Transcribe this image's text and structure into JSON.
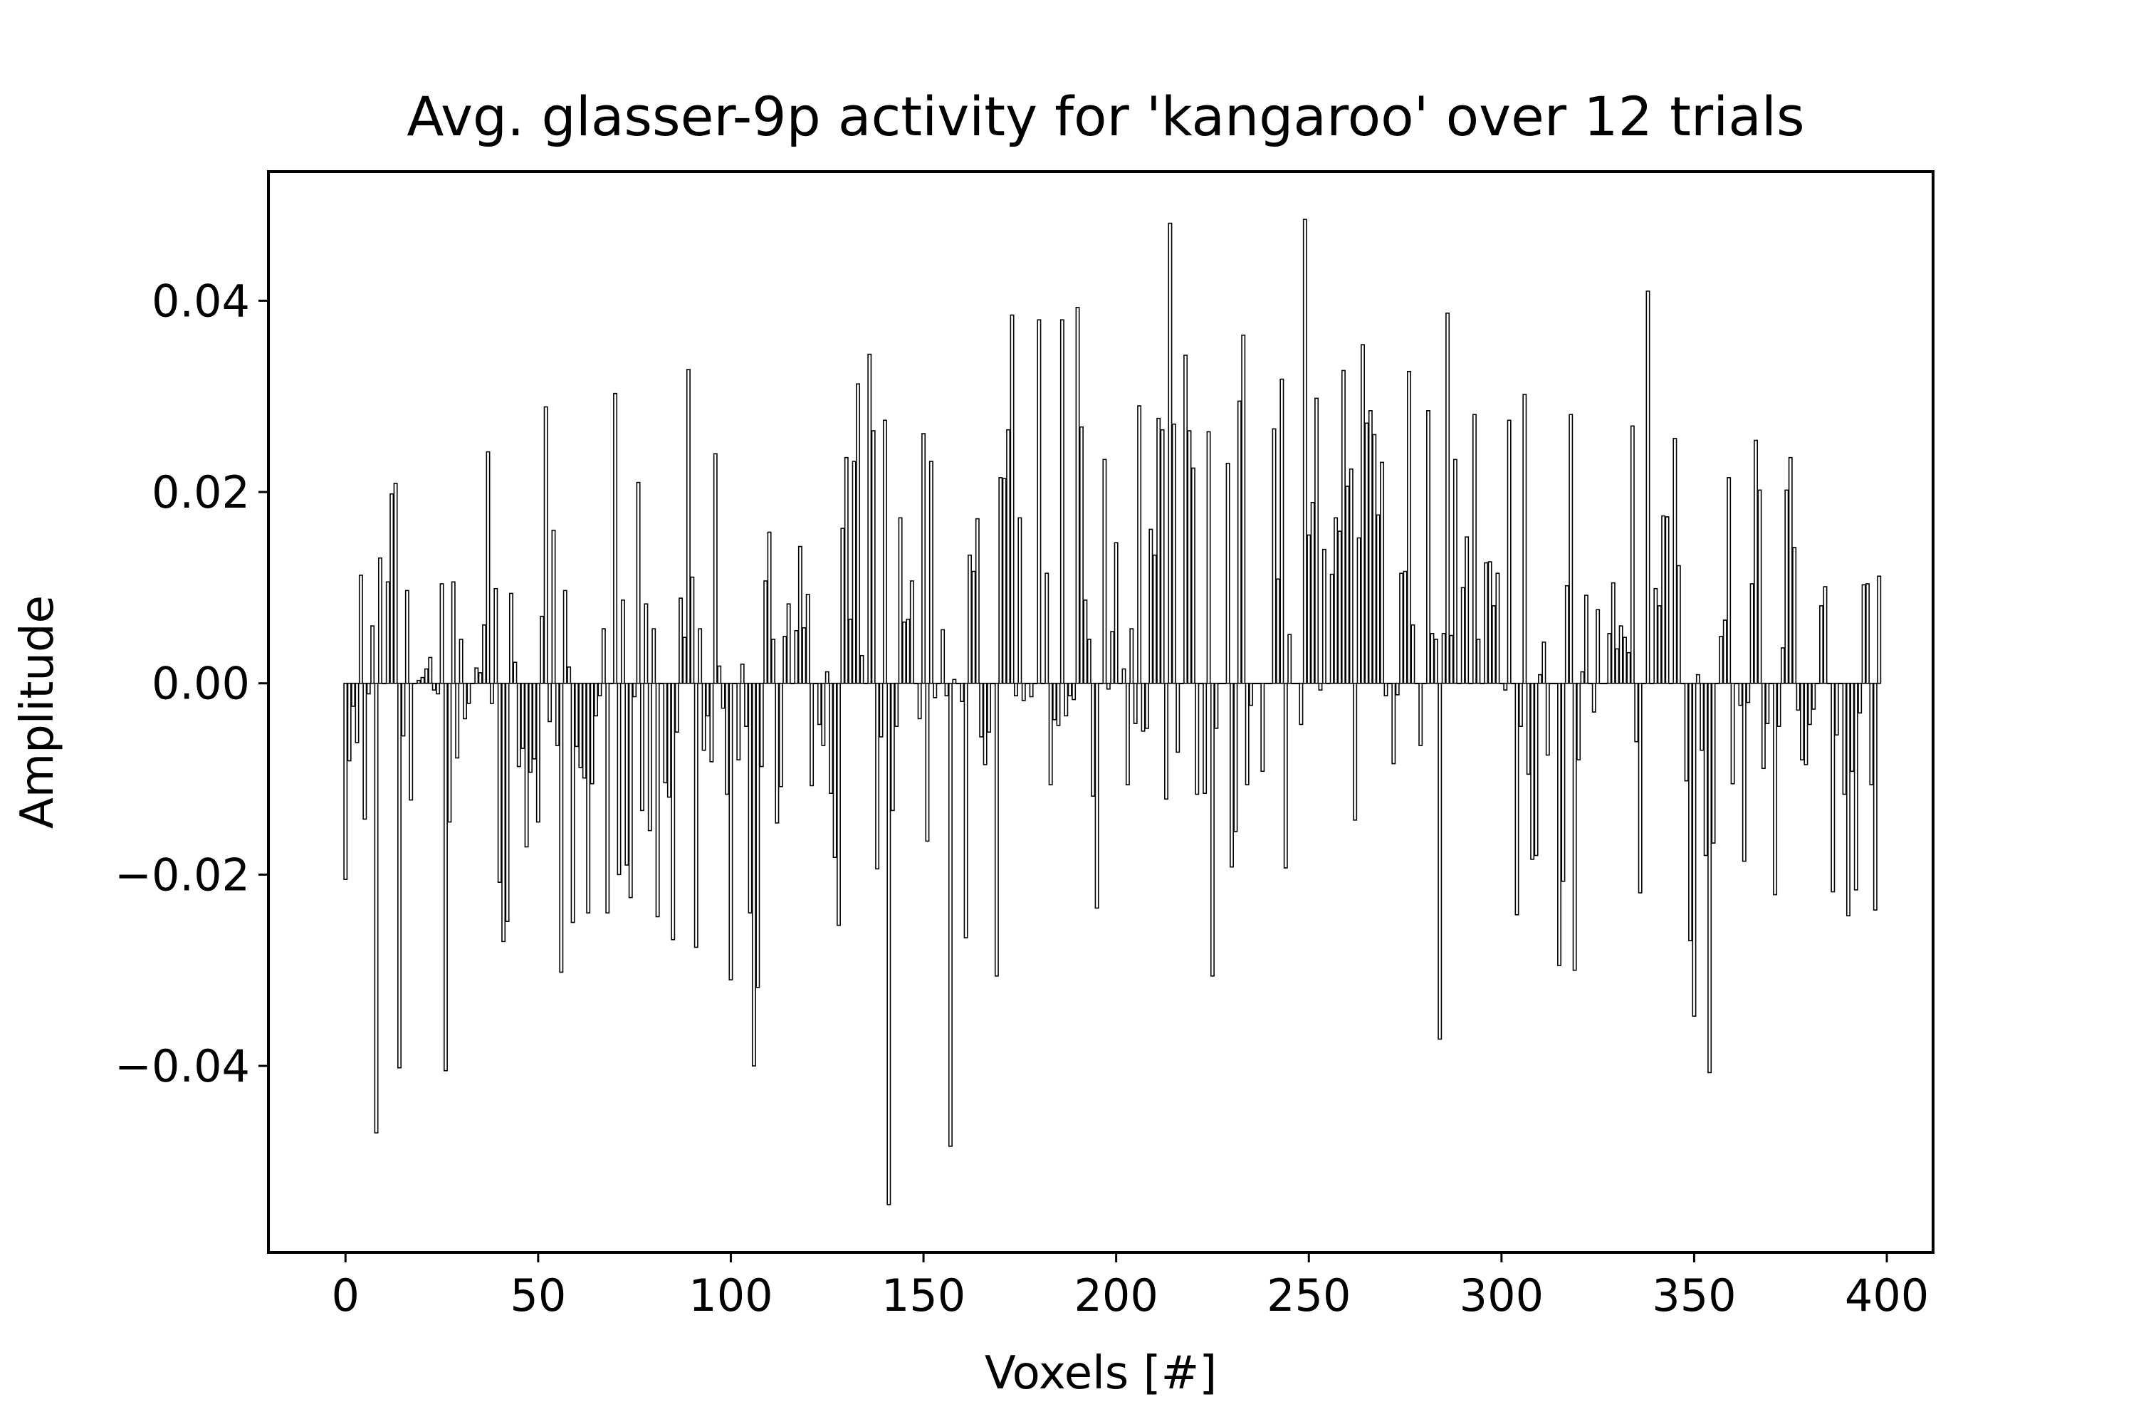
{
  "chart_data": {
    "type": "bar",
    "title": "Avg. glasser-9p activity for 'kangaroo' over 12 trials",
    "xlabel": "Voxels [#]",
    "ylabel": "Amplitude",
    "xlim": [
      -20,
      412
    ],
    "ylim": [
      -0.0595,
      0.0535
    ],
    "xticks": [
      0,
      50,
      100,
      150,
      200,
      250,
      300,
      350,
      400
    ],
    "xtick_labels": [
      "0",
      "50",
      "100",
      "150",
      "200",
      "250",
      "300",
      "350",
      "400"
    ],
    "yticks": [
      -0.04,
      -0.02,
      0.0,
      0.02,
      0.04
    ],
    "ytick_labels": [
      "−0.04",
      "−0.02",
      "0.00",
      "0.02",
      "0.04"
    ],
    "grid": false,
    "bar_color": "#000000",
    "x_start": 0,
    "values": [
      -0.0205,
      -0.0081,
      -0.0024,
      -0.0062,
      0.0113,
      -0.0142,
      -0.0011,
      0.006,
      -0.047,
      0.0131,
      0.0,
      0.0106,
      0.0198,
      0.0209,
      -0.0402,
      -0.0055,
      0.0097,
      -0.0122,
      0.0,
      0.0003,
      0.0006,
      0.0015,
      0.0027,
      -0.0007,
      -0.0011,
      0.0104,
      -0.0405,
      -0.0145,
      0.0106,
      -0.0078,
      0.0046,
      -0.0037,
      -0.0021,
      0.0,
      0.0016,
      0.0011,
      0.0061,
      0.0242,
      -0.0021,
      0.0099,
      -0.0208,
      -0.027,
      -0.0249,
      0.0094,
      0.0022,
      -0.0087,
      -0.0068,
      -0.0171,
      -0.0093,
      -0.0079,
      -0.0145,
      0.007,
      0.0289,
      -0.004,
      0.016,
      -0.0065,
      -0.0302,
      0.0097,
      0.0017,
      -0.025,
      -0.0066,
      -0.0088,
      -0.0099,
      -0.024,
      -0.0105,
      -0.0034,
      -0.0013,
      0.0057,
      -0.024,
      0.0,
      0.0303,
      -0.02,
      0.0087,
      -0.019,
      -0.0224,
      -0.0014,
      0.021,
      -0.0133,
      0.0083,
      -0.0154,
      0.0057,
      -0.0244,
      0.0,
      -0.0104,
      -0.0119,
      -0.0268,
      -0.0051,
      0.0089,
      0.0048,
      0.0328,
      0.0111,
      -0.0276,
      0.0057,
      -0.007,
      -0.0034,
      -0.0082,
      0.024,
      0.0018,
      -0.0026,
      -0.0116,
      -0.031,
      0.0,
      -0.008,
      0.002,
      -0.0045,
      -0.024,
      -0.04,
      -0.0318,
      -0.0087,
      0.0107,
      0.0158,
      0.0046,
      -0.0146,
      -0.0108,
      0.0049,
      0.0083,
      0.0,
      0.0055,
      0.0143,
      0.0058,
      0.0093,
      -0.0107,
      0.0,
      -0.0043,
      -0.0065,
      0.0012,
      -0.0115,
      -0.0182,
      -0.0253,
      0.0162,
      0.0236,
      0.0067,
      0.0232,
      0.0313,
      0.0029,
      0.0,
      0.0344,
      0.0264,
      -0.0194,
      -0.0056,
      0.0275,
      -0.0545,
      -0.0133,
      -0.0045,
      0.0173,
      0.0064,
      0.0067,
      0.0107,
      0.0,
      -0.0037,
      0.0261,
      -0.0165,
      0.0232,
      -0.0015,
      0.0,
      0.0056,
      -0.0013,
      -0.0484,
      0.0004,
      0.0,
      -0.0019,
      -0.0266,
      0.0134,
      0.0117,
      0.0172,
      -0.0056,
      -0.0085,
      -0.0051,
      0.0,
      -0.0306,
      0.0215,
      0.0214,
      0.0265,
      0.0385,
      -0.0013,
      0.0173,
      -0.0018,
      0.0,
      -0.0014,
      0.0,
      0.038,
      0.0,
      0.0115,
      -0.0106,
      -0.0038,
      -0.0044,
      0.038,
      -0.0034,
      -0.0013,
      -0.0017,
      0.0393,
      0.0268,
      0.0087,
      0.0046,
      -0.0118,
      -0.0235,
      0.0,
      0.0234,
      -0.0006,
      0.0054,
      0.0147,
      0.0,
      0.0015,
      -0.0106,
      0.0057,
      -0.0042,
      0.029,
      -0.005,
      -0.0047,
      0.0161,
      0.0134,
      0.0277,
      0.0265,
      -0.0121,
      0.0481,
      0.0271,
      -0.0072,
      0.0,
      0.0343,
      0.0264,
      0.0225,
      -0.0116,
      0.0,
      -0.0115,
      0.0263,
      -0.0306,
      -0.0047,
      0.0,
      0.0,
      0.023,
      -0.0192,
      -0.0155,
      0.0295,
      0.0364,
      -0.0106,
      -0.0023,
      0.0,
      0.0,
      -0.0092,
      0.0,
      0.0,
      0.0266,
      0.0109,
      0.0318,
      -0.0193,
      0.0051,
      0.0,
      0.0,
      -0.0043,
      0.0485,
      0.0155,
      0.0189,
      0.0298,
      -0.0007,
      0.014,
      0.0,
      0.0114,
      0.0173,
      0.0159,
      0.0327,
      0.0206,
      0.0224,
      -0.0143,
      0.0152,
      0.0354,
      0.0272,
      0.0285,
      0.026,
      0.0176,
      0.0231,
      -0.0013,
      0.0,
      -0.0084,
      -0.0012,
      0.0115,
      0.0117,
      0.0326,
      0.0061,
      0.0,
      -0.0065,
      0.0,
      0.0285,
      0.0052,
      0.0046,
      -0.0372,
      0.0052,
      0.0387,
      0.005,
      0.0234,
      0.0,
      0.01,
      0.0153,
      0.0,
      0.0281,
      0.0046,
      0.0,
      0.0126,
      0.0127,
      0.0081,
      0.0115,
      0.0,
      -0.0007,
      0.0275,
      0.0,
      -0.0242,
      -0.0045,
      0.0302,
      -0.0095,
      -0.0184,
      -0.018,
      0.0009,
      0.0043,
      -0.0075,
      0.0,
      0.0,
      -0.0295,
      -0.0207,
      0.0102,
      0.0281,
      -0.03,
      -0.008,
      0.0012,
      0.0092,
      0.0,
      -0.003,
      0.0077,
      0.0,
      0.0,
      0.0052,
      0.0105,
      0.0036,
      0.006,
      0.0048,
      0.0032,
      0.0269,
      -0.0061,
      -0.0219,
      0.0,
      0.041,
      0.0,
      0.0099,
      0.0081,
      0.0175,
      0.0174,
      0.0,
      0.0256,
      0.0123,
      0.0,
      -0.0102,
      -0.0269,
      -0.0348,
      0.0009,
      -0.007,
      -0.018,
      -0.0407,
      -0.0167,
      0.0,
      0.0049,
      0.0066,
      0.0215,
      -0.0105,
      0.0,
      -0.0023,
      -0.0186,
      -0.002,
      0.0104,
      0.0254,
      0.0202,
      -0.0089,
      -0.0042,
      0.0,
      -0.0221,
      -0.0045,
      0.0037,
      0.0202,
      0.0236,
      0.0142,
      -0.0028,
      -0.008,
      -0.0085,
      -0.0043,
      -0.0027,
      0.0,
      0.0081,
      0.0101,
      0.0,
      -0.0218,
      -0.0054,
      0.0,
      -0.0116,
      -0.0243,
      -0.0092,
      -0.0216,
      -0.0031,
      0.0103,
      0.0104,
      -0.0106,
      -0.0237,
      0.0112
    ]
  }
}
